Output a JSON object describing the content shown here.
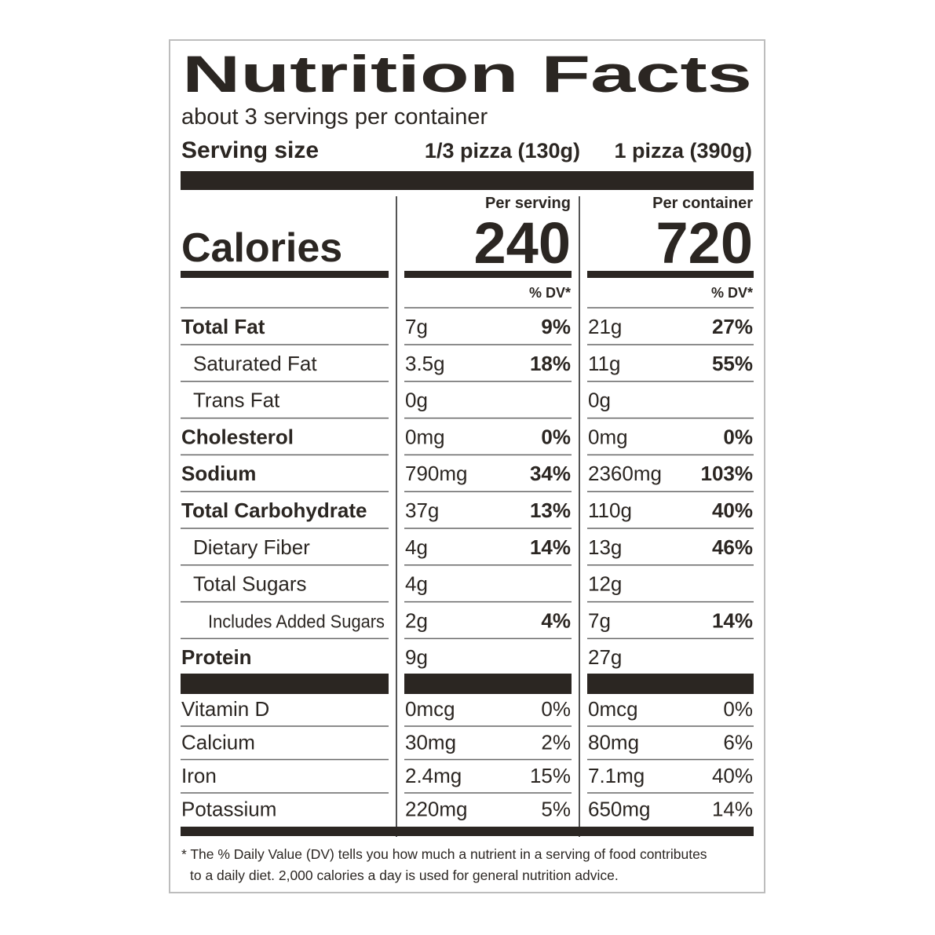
{
  "title": "Nutrition Facts",
  "servings": "about 3 servings per container",
  "serving_size": {
    "label": "Serving size",
    "per_serving": "1/3 pizza (130g)",
    "per_container": "1 pizza (390g)"
  },
  "columns": [
    "Per serving",
    "Per container"
  ],
  "calories": {
    "label": "Calories",
    "per_serving": "240",
    "per_container": "720"
  },
  "dv_header": [
    "% DV*",
    "% DV*"
  ],
  "nutrients": [
    {
      "name": "Total Fat",
      "serving": [
        "7g",
        "9%"
      ],
      "container": [
        "21g",
        "27%"
      ]
    },
    {
      "name": "Saturated Fat",
      "serving": [
        "3.5g",
        "18%"
      ],
      "container": [
        "11g",
        "55%"
      ]
    },
    {
      "name": "Trans Fat",
      "serving": [
        "0g",
        null
      ],
      "container": [
        "0g",
        null
      ]
    },
    {
      "name": "Cholesterol",
      "serving": [
        "0mg",
        "0%"
      ],
      "container": [
        "0mg",
        "0%"
      ]
    },
    {
      "name": "Sodium",
      "serving": [
        "790mg",
        "34%"
      ],
      "container": [
        "2360mg",
        "103%"
      ]
    },
    {
      "name": "Total Carbohydrate",
      "serving": [
        "37g",
        "13%"
      ],
      "container": [
        "110g",
        "40%"
      ]
    },
    {
      "name": "Dietary Fiber",
      "serving": [
        "4g",
        "14%"
      ],
      "container": [
        "13g",
        "46%"
      ]
    },
    {
      "name": "Total Sugars",
      "serving": [
        "4g",
        null
      ],
      "container": [
        "12g",
        null
      ]
    },
    {
      "name": "Includes Added Sugars",
      "serving": [
        "2g",
        "4%"
      ],
      "container": [
        "7g",
        "14%"
      ]
    },
    {
      "name": "Protein",
      "serving": [
        "9g",
        null
      ],
      "container": [
        "27g",
        null
      ]
    }
  ],
  "vitamins": [
    {
      "name": "Vitamin D",
      "serving": [
        "0mcg",
        "0%"
      ],
      "container": [
        "0mcg",
        "0%"
      ]
    },
    {
      "name": "Calcium",
      "serving": [
        "30mg",
        "2%"
      ],
      "container": [
        "80mg",
        "6%"
      ]
    },
    {
      "name": "Iron",
      "serving": [
        "2.4mg",
        "15%"
      ],
      "container": [
        "7.1mg",
        "40%"
      ]
    },
    {
      "name": "Potassium",
      "serving": [
        "220mg",
        "5%"
      ],
      "container": [
        "650mg",
        "14%"
      ]
    }
  ],
  "footnote": [
    "* The % Daily Value (DV) tells you how much a nutrient in a serving of food contributes",
    "to a daily diet. 2,000 calories a day is used for general nutrition advice."
  ]
}
